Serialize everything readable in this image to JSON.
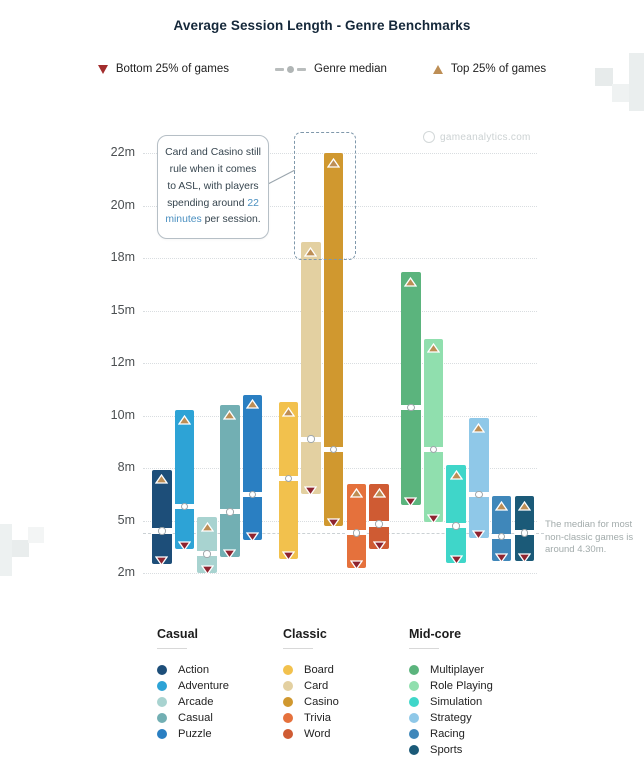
{
  "title": "Average Session Length - Genre Benchmarks",
  "watermark": "gameanalytics.com",
  "legend": {
    "bottom_quartile": "Bottom 25% of games",
    "median": "Genre median",
    "top_quartile": "Top 25% of games"
  },
  "annotations": {
    "callout": {
      "text_before": "Card and Casino still rule when it comes to ASL, with players spending around ",
      "highlight": "22 minutes",
      "text_after": " per session."
    },
    "side_note": "The median for most non-classic games is around 4.30m.",
    "reference_value": 4.3
  },
  "colors": {
    "top_marker": "#bd8e55",
    "bottom_marker": "#8e2430",
    "median_dot": "#9fa7ab",
    "grid": "#d9dde0",
    "title": "#15283a",
    "callout_highlight": "#4a8fc0"
  },
  "chart_data": {
    "type": "bar",
    "subtype": "quartile-range-bars",
    "unit": "minutes",
    "ylabel": "",
    "xlabel": "",
    "grid": true,
    "y_ticks": [
      {
        "v": 2,
        "label": "2m"
      },
      {
        "v": 5,
        "label": "5m"
      },
      {
        "v": 8,
        "label": "8m"
      },
      {
        "v": 10,
        "label": "10m"
      },
      {
        "v": 12,
        "label": "12m"
      },
      {
        "v": 15,
        "label": "15m"
      },
      {
        "v": 18,
        "label": "18m"
      },
      {
        "v": 20,
        "label": "20m"
      },
      {
        "v": 22,
        "label": "22m"
      }
    ],
    "groups": [
      {
        "name": "Casual",
        "genres": [
          {
            "label": "Action",
            "color": "#1d4e79",
            "bottom": 2.5,
            "median": 4.4,
            "top": 7.9
          },
          {
            "label": "Adventure",
            "color": "#2da3d6",
            "bottom": 3.4,
            "median": 5.8,
            "top": 10.2
          },
          {
            "label": "Arcade",
            "color": "#a8d3d0",
            "bottom": 2.0,
            "median": 3.1,
            "top": 5.2
          },
          {
            "label": "Casual",
            "color": "#72afb3",
            "bottom": 2.9,
            "median": 5.5,
            "top": 10.4
          },
          {
            "label": "Puzzle",
            "color": "#2a7fc2",
            "bottom": 3.9,
            "median": 6.5,
            "top": 10.8
          }
        ]
      },
      {
        "name": "Classic",
        "genres": [
          {
            "label": "Board",
            "color": "#f2c14d",
            "bottom": 2.8,
            "median": 7.4,
            "top": 10.5
          },
          {
            "label": "Card",
            "color": "#e3d0a1",
            "bottom": 6.5,
            "median": 9.1,
            "top": 18.6
          },
          {
            "label": "Casino",
            "color": "#d0982f",
            "bottom": 4.7,
            "median": 8.7,
            "top": 22.0
          },
          {
            "label": "Trivia",
            "color": "#e5713c",
            "bottom": 2.3,
            "median": 4.3,
            "top": 7.1
          },
          {
            "label": "Word",
            "color": "#cf5b33",
            "bottom": 3.4,
            "median": 4.8,
            "top": 7.1
          }
        ]
      },
      {
        "name": "Mid-core",
        "genres": [
          {
            "label": "Multiplayer",
            "color": "#5bb47d",
            "bottom": 5.9,
            "median": 10.3,
            "top": 17.2
          },
          {
            "label": "Role Playing",
            "color": "#90dfae",
            "bottom": 4.9,
            "median": 8.7,
            "top": 13.4
          },
          {
            "label": "Simulation",
            "color": "#3fd6c9",
            "bottom": 2.6,
            "median": 4.7,
            "top": 8.1
          },
          {
            "label": "Strategy",
            "color": "#8fc8e8",
            "bottom": 4.0,
            "median": 6.5,
            "top": 9.9
          },
          {
            "label": "Racing",
            "color": "#3f87ba",
            "bottom": 2.7,
            "median": 4.1,
            "top": 6.4
          },
          {
            "label": "Sports",
            "color": "#1b5a78",
            "bottom": 2.7,
            "median": 4.3,
            "top": 6.4
          }
        ]
      }
    ],
    "highlighted_genres": [
      "Card",
      "Casino"
    ]
  }
}
